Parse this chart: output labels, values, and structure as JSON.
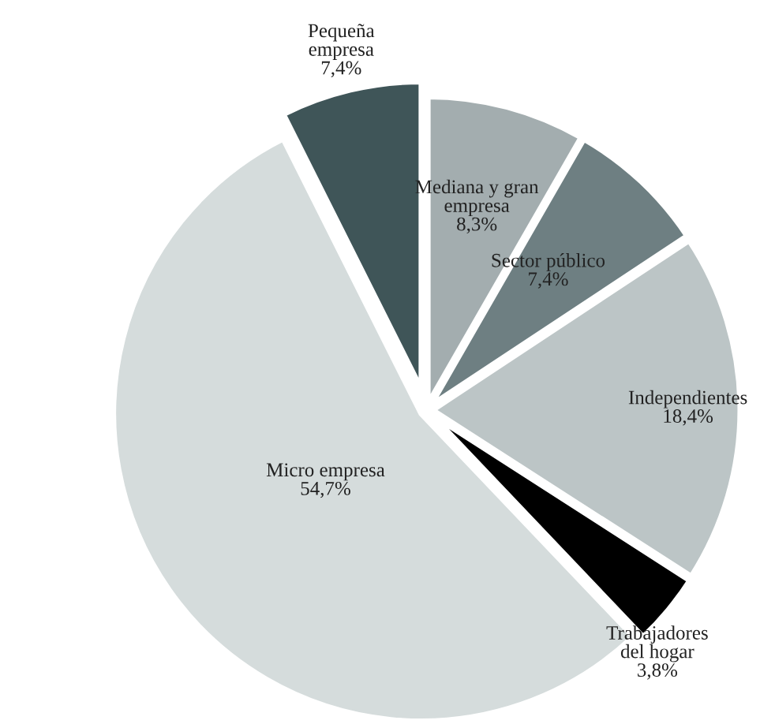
{
  "chart_data": {
    "type": "pie",
    "categories": [
      "Pequeña\nempresa",
      "Mediana y gran\nempresa",
      "Sector público",
      "Independientes",
      "Trabajadores\ndel hogar",
      "Micro empresa"
    ],
    "values": [
      7.4,
      8.3,
      7.4,
      18.4,
      3.8,
      54.7
    ],
    "value_labels": [
      "7,4%",
      "8,3%",
      "7,4%",
      "18,4%",
      "3,8%",
      "54,7%"
    ],
    "colors": [
      "#3f5558",
      "#a3adaf",
      "#6e7f82",
      "#bcc5c6",
      "#000000",
      "#d5dcdc"
    ],
    "legend": false
  }
}
